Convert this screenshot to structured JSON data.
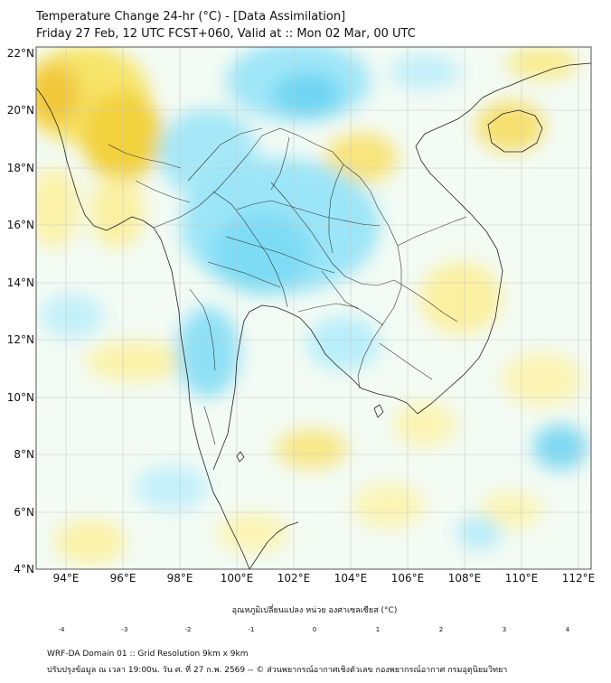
{
  "header": {
    "title": "Temperature Change 24-hr (°C) - [Data Assimilation]",
    "subtitle": "Friday 27 Feb, 12 UTC FCST+060, Valid at :: Mon 02 Mar, 00 UTC"
  },
  "map": {
    "lat_labels": [
      "22°N",
      "20°N",
      "18°N",
      "16°N",
      "14°N",
      "12°N",
      "10°N",
      "8°N",
      "6°N",
      "4°N"
    ],
    "lon_labels": [
      "94°E",
      "96°E",
      "98°E",
      "100°E",
      "102°E",
      "104°E",
      "106°E",
      "108°E",
      "110°E",
      "112°E"
    ],
    "grid": true
  },
  "colorbar": {
    "title": "อุณหภูมิเปลี่ยนแปลง หน่วย องศาเซลเซียส (°C)",
    "ticks": [
      "-4",
      "-3",
      "-2",
      "-1",
      "0",
      "1",
      "2",
      "3",
      "4"
    ],
    "colors": {
      "dark_blue": "#1a1a8c",
      "blue": "#1f5fe0",
      "cyan": "#1ec8f0",
      "light_cyan": "#b8f0ff",
      "white": "#ffffff",
      "light_yellow": "#fff6a0",
      "yellow": "#ffd21e",
      "orange": "#f08c1e",
      "red": "#d21e1e",
      "dark_red": "#6e0a0a"
    }
  },
  "footer": {
    "line1": "WRF-DA Domain 01 :: Grid Resolution 9km x 9km",
    "line2": "ปรับปรุงข้อมูล ณ เวลา 19:00น. วัน ศ. ที่ 27 ก.พ. 2569 -- © ส่วนพยากรณ์อากาศเชิงตัวเลข กองพยากรณ์อากาศ กรมอุตุนิยมวิทยา"
  }
}
